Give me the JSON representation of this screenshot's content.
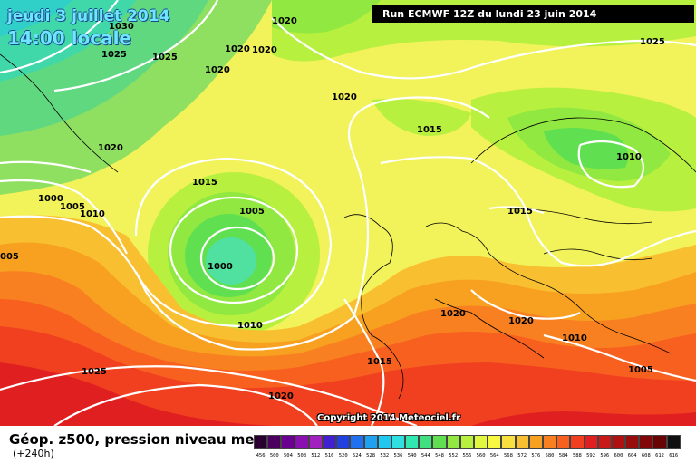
{
  "header": {
    "date": "jeudi 3 juillet 2014",
    "time": "14:00 locale",
    "run": "Run ECMWF 12Z du lundi 23 juin 2014"
  },
  "copyright": "Copyright 2014 Meteociel.fr",
  "footer": {
    "title": "Géop. z500, pression niveau mer",
    "subtitle": "(+240h)"
  },
  "isobar_labels": [
    {
      "text": "1020",
      "id": "a"
    },
    {
      "text": "1030",
      "id": "b"
    },
    {
      "text": "1025",
      "id": "c"
    },
    {
      "text": "1025",
      "id": "d"
    },
    {
      "text": "1020",
      "id": "e"
    },
    {
      "text": "1020",
      "id": "f"
    },
    {
      "text": "1020",
      "id": "g"
    },
    {
      "text": "1020",
      "id": "h"
    },
    {
      "text": "1025",
      "id": "i"
    },
    {
      "text": "1015",
      "id": "j"
    },
    {
      "text": "1020",
      "id": "k"
    },
    {
      "text": "1010",
      "id": "l"
    },
    {
      "text": "1015",
      "id": "m"
    },
    {
      "text": "1000",
      "id": "n"
    },
    {
      "text": "1005",
      "id": "o"
    },
    {
      "text": "1010",
      "id": "p"
    },
    {
      "text": "1005",
      "id": "q"
    },
    {
      "text": "1015",
      "id": "r"
    },
    {
      "text": "005",
      "id": "s"
    },
    {
      "text": "1000",
      "id": "t"
    },
    {
      "text": "1010",
      "id": "u"
    },
    {
      "text": "1020",
      "id": "v"
    },
    {
      "text": "1020",
      "id": "w"
    },
    {
      "text": "1010",
      "id": "x"
    },
    {
      "text": "1015",
      "id": "y"
    },
    {
      "text": "1025",
      "id": "z"
    },
    {
      "text": "1005",
      "id": "aa"
    },
    {
      "text": "1020",
      "id": "bb"
    }
  ],
  "scale": {
    "labels": [
      "456",
      "500",
      "504",
      "508",
      "512",
      "516",
      "520",
      "524",
      "528",
      "532",
      "536",
      "540",
      "544",
      "548",
      "552",
      "556",
      "560",
      "564",
      "568",
      "572",
      "576",
      "580",
      "584",
      "588",
      "592",
      "596",
      "600",
      "604",
      "608",
      "612",
      "616"
    ],
    "colors": [
      "#2a0030",
      "#4b0060",
      "#6a0090",
      "#8a10b0",
      "#a020c0",
      "#4020d0",
      "#2040e0",
      "#2070f0",
      "#20a0f0",
      "#20c8f0",
      "#30e0e0",
      "#30e8b0",
      "#40e080",
      "#60e050",
      "#90e840",
      "#b8f040",
      "#e0f840",
      "#f8f840",
      "#f8e040",
      "#f8c030",
      "#f8a020",
      "#f88020",
      "#f86020",
      "#f04020",
      "#e02020",
      "#c81818",
      "#b01010",
      "#980c0c",
      "#800808",
      "#680404",
      "#101010"
    ]
  },
  "colors": {
    "runbar_bg": "#000000",
    "isobar": "#ffffff",
    "low_center": "#60e0a0",
    "subtropical_red": "#e83020"
  }
}
